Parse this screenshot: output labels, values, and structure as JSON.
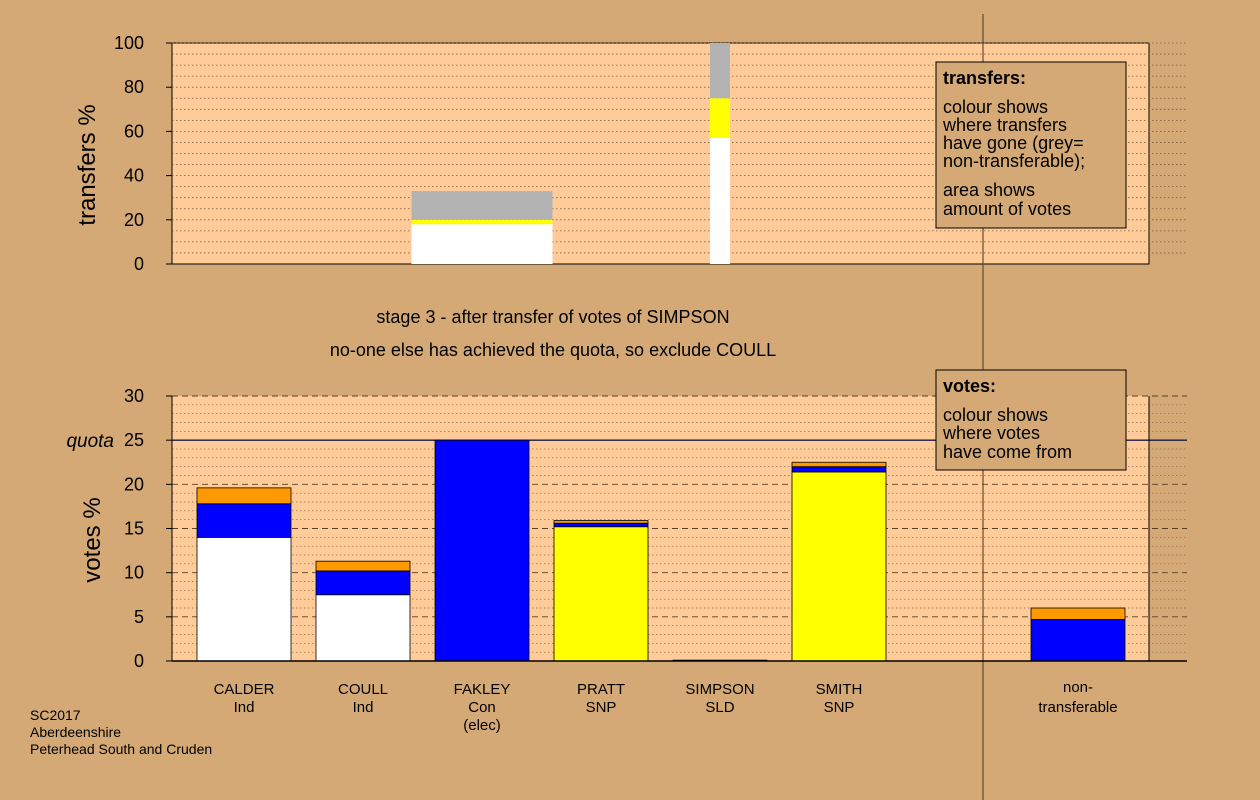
{
  "chart_data": [
    {
      "type": "bar",
      "stacked": true,
      "ylabel": "transfers %",
      "ylim": [
        0,
        100
      ],
      "yticks": [
        0,
        20,
        40,
        60,
        80,
        100
      ],
      "categories": [
        "CALDER",
        "COULL",
        "FAKLEY",
        "PRATT",
        "SIMPSON",
        "SMITH"
      ],
      "bars": [
        {
          "category": "FAKLEY",
          "segments": [
            {
              "color": "#ffffff",
              "value": 18
            },
            {
              "color": "#ffff00",
              "value": 2
            },
            {
              "color": "#b3b3b3",
              "value": 13
            }
          ]
        },
        {
          "category": "SIMPSON",
          "segments": [
            {
              "color": "#ffffff",
              "value": 57
            },
            {
              "color": "#ffff00",
              "value": 18
            },
            {
              "color": "#b3b3b3",
              "value": 25
            }
          ]
        }
      ],
      "legend": {
        "title": "transfers:",
        "lines": [
          "colour shows",
          "where transfers",
          "have gone (grey=",
          "non-transferable);",
          "area shows",
          "amount of votes"
        ]
      }
    },
    {
      "type": "bar",
      "stacked": true,
      "ylabel": "votes %",
      "ylim": [
        0,
        30
      ],
      "yticks": [
        0,
        5,
        10,
        15,
        20,
        25,
        30
      ],
      "quota": {
        "value": 25,
        "label": "quota"
      },
      "candidates": [
        {
          "name": "CALDER",
          "party": "Ind",
          "extra": "",
          "segments": [
            {
              "color": "#ffffff",
              "value": 14.0
            },
            {
              "color": "#0000ff",
              "value": 3.8
            },
            {
              "color": "#ff9900",
              "value": 1.8
            }
          ]
        },
        {
          "name": "COULL",
          "party": "Ind",
          "extra": "",
          "segments": [
            {
              "color": "#ffffff",
              "value": 7.5
            },
            {
              "color": "#0000ff",
              "value": 2.7
            },
            {
              "color": "#ff9900",
              "value": 1.1
            }
          ]
        },
        {
          "name": "FAKLEY",
          "party": "Con",
          "extra": "(elec)",
          "segments": [
            {
              "color": "#0000ff",
              "value": 25.0
            }
          ]
        },
        {
          "name": "PRATT",
          "party": "SNP",
          "extra": "",
          "segments": [
            {
              "color": "#ffff00",
              "value": 15.2
            },
            {
              "color": "#0000ff",
              "value": 0.4
            },
            {
              "color": "#ff9900",
              "value": 0.3
            }
          ]
        },
        {
          "name": "SIMPSON",
          "party": "SLD",
          "extra": "",
          "segments": [
            {
              "color": "#0000ff",
              "value": 0.1
            }
          ]
        },
        {
          "name": "SMITH",
          "party": "SNP",
          "extra": "",
          "segments": [
            {
              "color": "#ffff00",
              "value": 21.4
            },
            {
              "color": "#0000ff",
              "value": 0.6
            },
            {
              "color": "#ff9900",
              "value": 0.5
            }
          ]
        }
      ],
      "nontransferable": {
        "label_line1": "non-",
        "label_line2": "transferable",
        "segments": [
          {
            "color": "#0000ff",
            "value": 4.7
          },
          {
            "color": "#ff9900",
            "value": 1.3
          }
        ]
      },
      "legend": {
        "title": "votes:",
        "lines": [
          "colour shows",
          "where votes",
          "have come from"
        ]
      }
    }
  ],
  "caption": {
    "line1": "stage 3 - after transfer of votes of SIMPSON",
    "line2": "no-one else has achieved the quota, so exclude COULL"
  },
  "footer": {
    "line1": "SC2017",
    "line2": "Aberdeenshire",
    "line3": "Peterhead South and Cruden"
  }
}
